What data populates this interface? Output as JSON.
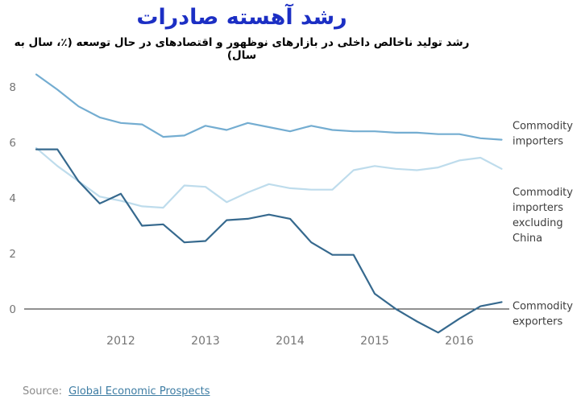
{
  "header": {
    "title": "رشد آهسته صادرات",
    "subtitle": "رشد تولید ناخالص داخلی در بازارهای نوظهور و اقتصادهای در حال توسعه (٪، سال به سال)"
  },
  "source": {
    "label": "Source:",
    "link": "Global Economic Prospects"
  },
  "chart_data": {
    "type": "line",
    "title": "رشد آهسته صادرات",
    "subtitle": "رشد تولید ناخالص داخلی در بازارهای نوظهور و اقتصادهای در حال توسعه (٪، سال به سال)",
    "x_start": 2011.0,
    "x_step_years": 0.25,
    "xlim": [
      2010.85,
      2016.6
    ],
    "ylim": [
      -1.5,
      8.8
    ],
    "yticks": [
      0,
      2,
      4,
      6,
      8
    ],
    "xticks": [
      2012,
      2013,
      2014,
      2015,
      2016
    ],
    "grid": "off",
    "legend_position": "right-of-line-ends",
    "axis_color": "#757575",
    "zero_line_color": "#222222",
    "series": [
      {
        "id": "importers",
        "name": "Commodity importers",
        "label_lines": [
          "Commodity",
          "importers"
        ],
        "label_value": 6.35,
        "color": "#74add1",
        "values": [
          8.45,
          7.9,
          7.3,
          6.9,
          6.7,
          6.65,
          6.2,
          6.25,
          6.6,
          6.45,
          6.7,
          6.55,
          6.4,
          6.6,
          6.45,
          6.4,
          6.4,
          6.35,
          6.35,
          6.3,
          6.3,
          6.15,
          6.1
        ]
      },
      {
        "id": "importers-excluding-china",
        "name": "Commodity importers excluding China",
        "label_lines": [
          "Commodity",
          "importers",
          "excluding",
          "China"
        ],
        "label_value": 3.4,
        "color": "#bedcec",
        "values": [
          5.8,
          5.15,
          4.6,
          4.05,
          3.9,
          3.7,
          3.65,
          4.45,
          4.4,
          3.85,
          4.2,
          4.5,
          4.35,
          4.3,
          4.3,
          5.0,
          5.15,
          5.05,
          5.0,
          5.1,
          5.35,
          5.45,
          5.05
        ]
      },
      {
        "id": "exporters",
        "name": "Commodity exporters",
        "label_lines": [
          "Commodity",
          "exporters"
        ],
        "label_value": -0.15,
        "color": "#36698e",
        "values": [
          5.75,
          5.75,
          4.6,
          3.8,
          4.15,
          3.0,
          3.05,
          2.4,
          2.45,
          3.2,
          3.25,
          3.4,
          3.25,
          2.4,
          1.95,
          1.95,
          0.55,
          0.0,
          -0.45,
          -0.85,
          -0.35,
          0.1,
          0.25
        ]
      }
    ]
  }
}
